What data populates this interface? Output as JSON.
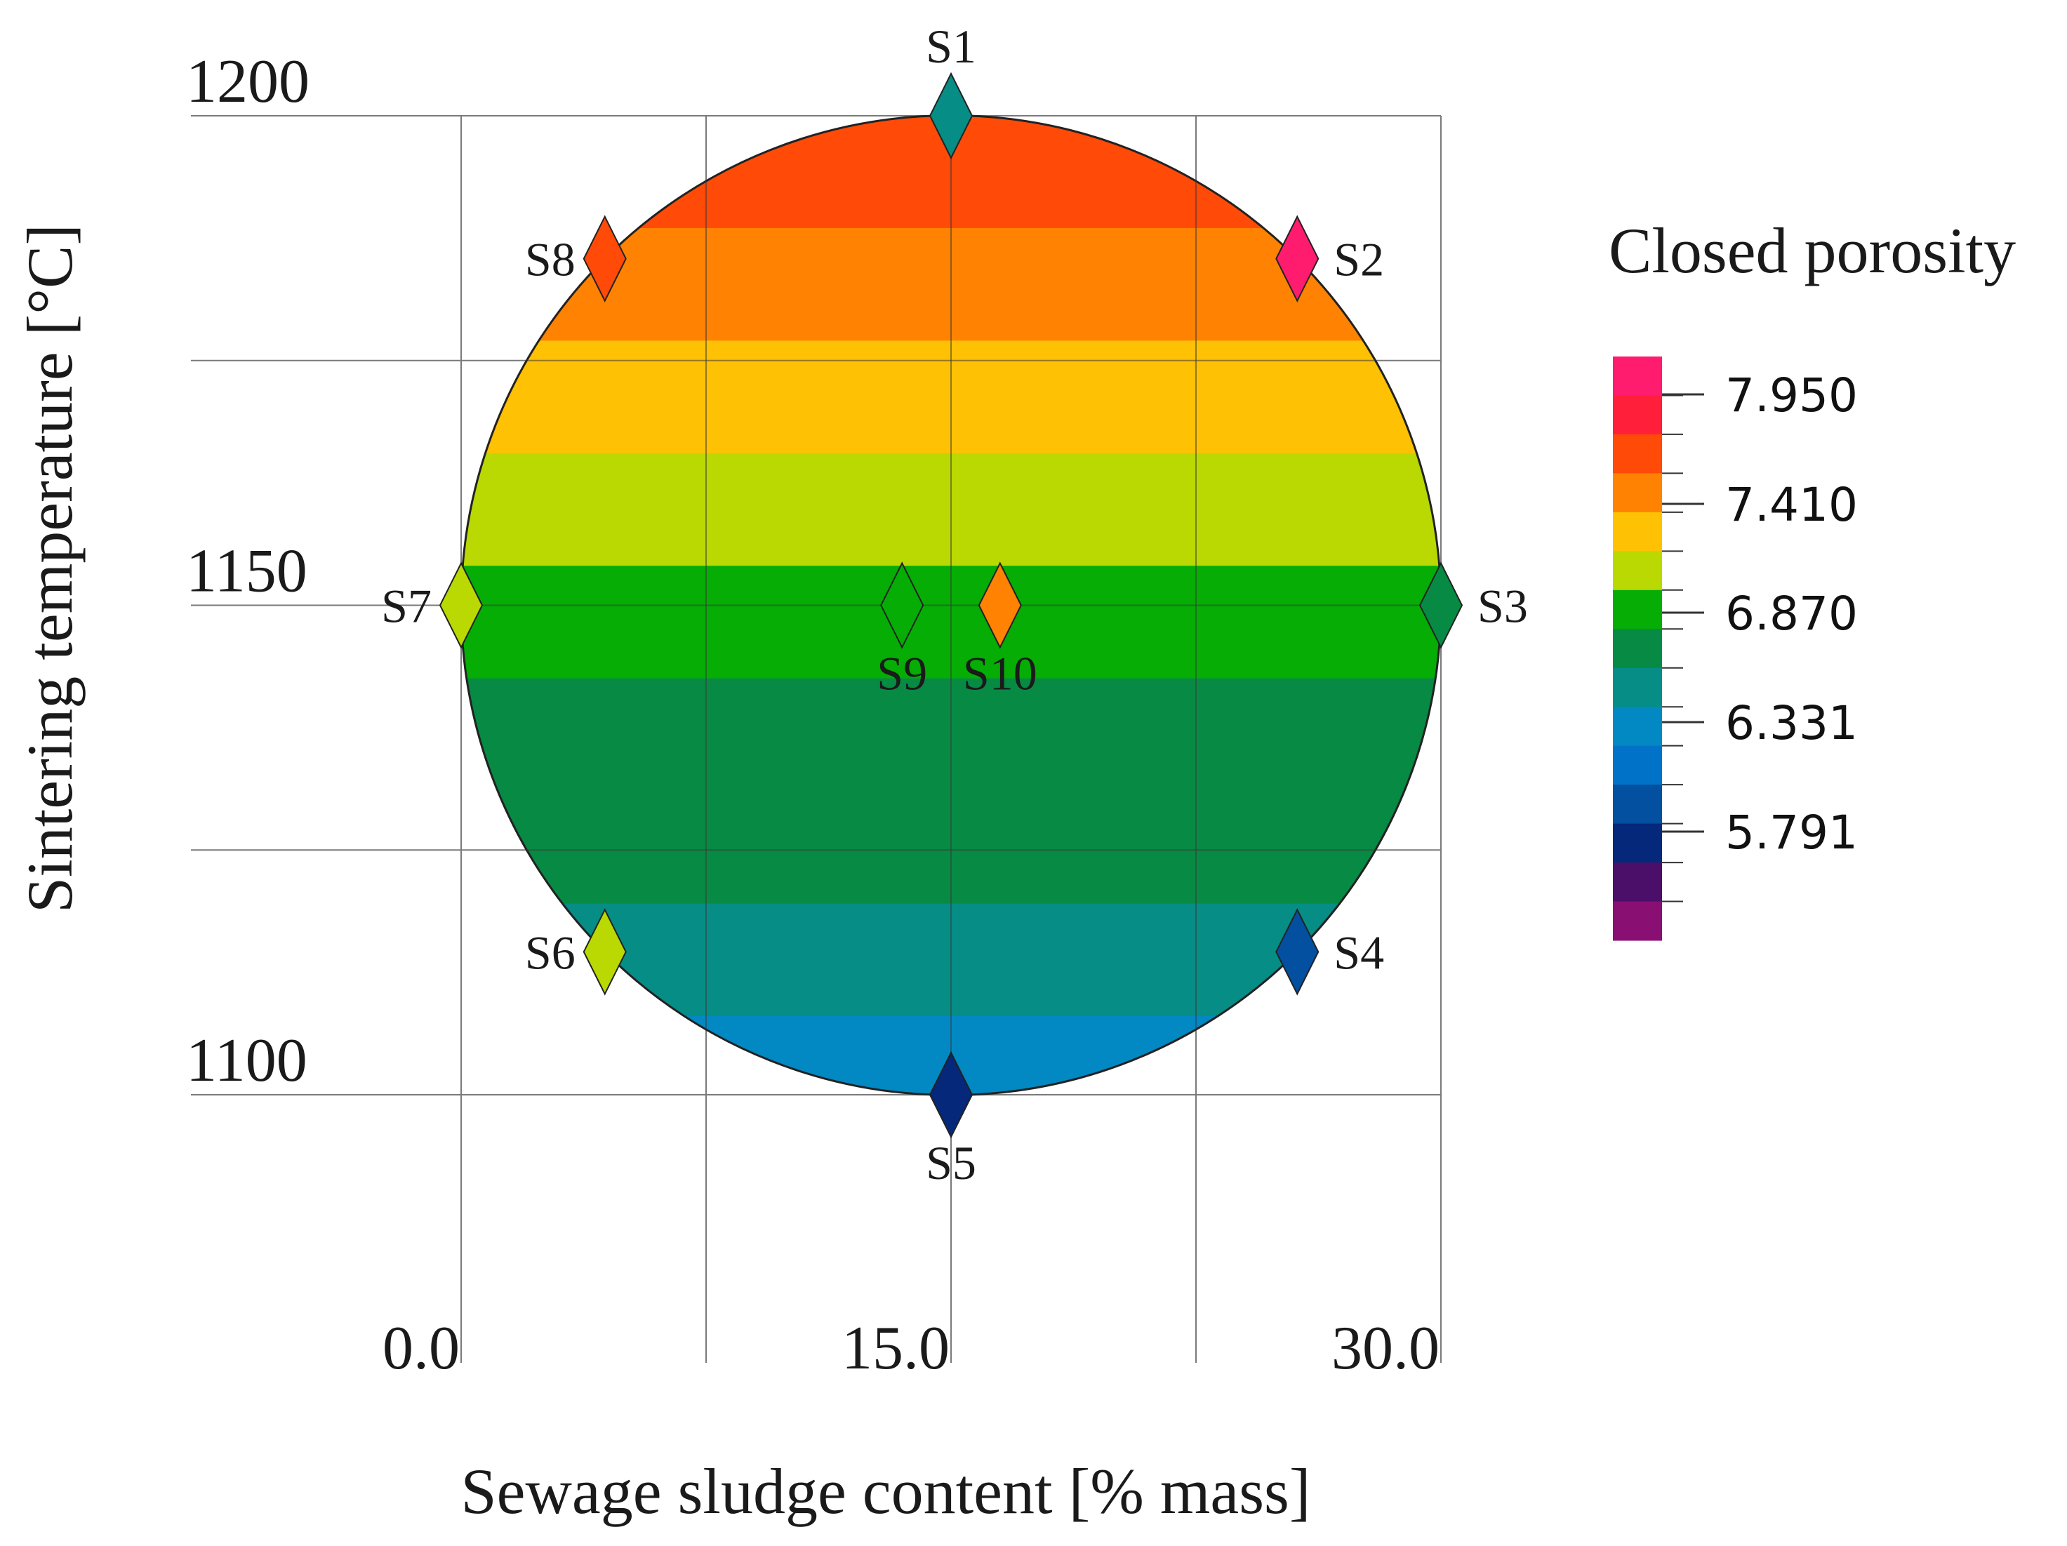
{
  "chart_data": {
    "type": "contour",
    "xlabel": "Sewage sludge content [% mass]",
    "ylabel": "Sintering temperature [°C]",
    "x_ticks": [
      "0.0",
      "15.0",
      "30.0"
    ],
    "y_ticks": [
      "1100",
      "1150",
      "1200"
    ],
    "xlim": [
      0,
      30
    ],
    "ylim": [
      1100,
      1200
    ],
    "grid": true,
    "legend_title": "Closed porosity",
    "legend_labels": [
      "7.950",
      "7.410",
      "6.870",
      "6.331",
      "5.791"
    ],
    "colorscale": [
      "#ff1c6e",
      "#ff1f3b",
      "#ff4a08",
      "#ff8203",
      "#ffc103",
      "#bad903",
      "#05ad05",
      "#078a43",
      "#068d86",
      "#0289c3",
      "#0072c7",
      "#034fa0",
      "#05287a",
      "#4b0f6a",
      "#8a0f72"
    ],
    "bands": [
      {
        "y_from": 1188.5,
        "y_to": 1200,
        "color": "#ff4a08"
      },
      {
        "y_from": 1177,
        "y_to": 1188.5,
        "color": "#ff8203"
      },
      {
        "y_from": 1165.5,
        "y_to": 1177,
        "color": "#ffc103"
      },
      {
        "y_from": 1154,
        "y_to": 1165.5,
        "color": "#bad903"
      },
      {
        "y_from": 1142.5,
        "y_to": 1154,
        "color": "#05ad05"
      },
      {
        "y_from": 1131,
        "y_to": 1142.5,
        "color": "#078a43"
      },
      {
        "y_from": 1119.5,
        "y_to": 1131,
        "color": "#078a43"
      },
      {
        "y_from": 1108,
        "y_to": 1119.5,
        "color": "#068d86"
      },
      {
        "y_from": 1100,
        "y_to": 1108,
        "color": "#0289c3"
      }
    ],
    "points": [
      {
        "label": "S1",
        "x": 15.0,
        "y": 1200,
        "color": "#068d86",
        "label_pos": "above"
      },
      {
        "label": "S2",
        "x": 25.6,
        "y": 1185.4,
        "color": "#ff1c6e",
        "label_pos": "right"
      },
      {
        "label": "S3",
        "x": 30.0,
        "y": 1150,
        "color": "#078a43",
        "label_pos": "right"
      },
      {
        "label": "S4",
        "x": 25.6,
        "y": 1114.6,
        "color": "#034fa0",
        "label_pos": "right"
      },
      {
        "label": "S5",
        "x": 15.0,
        "y": 1100,
        "color": "#05287a",
        "label_pos": "below"
      },
      {
        "label": "S6",
        "x": 4.4,
        "y": 1114.6,
        "color": "#bad903",
        "label_pos": "left"
      },
      {
        "label": "S7",
        "x": 0.0,
        "y": 1150,
        "color": "#bad903",
        "label_pos": "left"
      },
      {
        "label": "S8",
        "x": 4.4,
        "y": 1185.4,
        "color": "#ff4a08",
        "label_pos": "left"
      },
      {
        "label": "S9",
        "x": 13.5,
        "y": 1150,
        "color": "#05ad05",
        "label_pos": "below"
      },
      {
        "label": "S10",
        "x": 16.5,
        "y": 1150,
        "color": "#ff8203",
        "label_pos": "below"
      }
    ]
  }
}
